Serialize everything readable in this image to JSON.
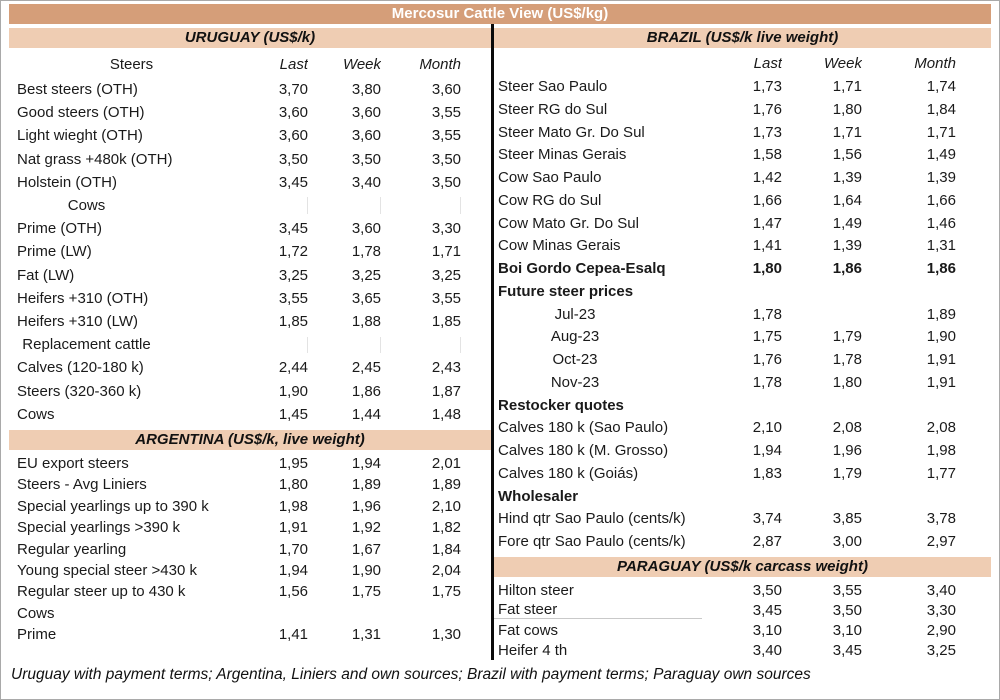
{
  "title": "Mercosur Cattle View (US$/kg)",
  "footer": "Uruguay with payment terms; Argentina, Liniers and own sources; Brazil with payment terms; Paraguay own sources",
  "columns": {
    "last": "Last",
    "week": "Week",
    "month": "Month"
  },
  "colors": {
    "title_bg": "#d59e79",
    "band_bg": "#efcdb3",
    "divider": "#0a0a0a"
  },
  "left": {
    "uruguay": {
      "header": "URUGUAY (US$/k)",
      "col_label": "Steers",
      "rows": [
        {
          "type": "data",
          "label": "Best steers (OTH)",
          "last": "3,70",
          "week": "3,80",
          "month": "3,60"
        },
        {
          "type": "data",
          "label": "Good steers (OTH)",
          "last": "3,60",
          "week": "3,60",
          "month": "3,55"
        },
        {
          "type": "data",
          "label": "Light wieght (OTH)",
          "last": "3,60",
          "week": "3,60",
          "month": "3,55"
        },
        {
          "type": "data",
          "label": "Nat grass +480k (OTH)",
          "last": "3,50",
          "week": "3,50",
          "month": "3,50"
        },
        {
          "type": "data",
          "label": "Holstein (OTH)",
          "last": "3,45",
          "week": "3,40",
          "month": "3,50"
        },
        {
          "type": "sub-center",
          "label": "Cows",
          "last": "",
          "week": "",
          "month": ""
        },
        {
          "type": "data",
          "label": "Prime (OTH)",
          "last": "3,45",
          "week": "3,60",
          "month": "3,30"
        },
        {
          "type": "data",
          "label": "Prime (LW)",
          "last": "1,72",
          "week": "1,78",
          "month": "1,71"
        },
        {
          "type": "data",
          "label": "Fat (LW)",
          "last": "3,25",
          "week": "3,25",
          "month": "3,25"
        },
        {
          "type": "data",
          "label": "Heifers +310 (OTH)",
          "last": "3,55",
          "week": "3,65",
          "month": "3,55"
        },
        {
          "type": "data",
          "label": "Heifers +310 (LW)",
          "last": "1,85",
          "week": "1,88",
          "month": "1,85"
        },
        {
          "type": "sub-center",
          "label": "Replacement cattle",
          "last": "",
          "week": "",
          "month": ""
        },
        {
          "type": "data",
          "label": "Calves (120-180 k)",
          "last": "2,44",
          "week": "2,45",
          "month": "2,43"
        },
        {
          "type": "data",
          "label": "Steers (320-360 k)",
          "last": "1,90",
          "week": "1,86",
          "month": "1,87"
        },
        {
          "type": "data",
          "label": "Cows",
          "last": "1,45",
          "week": "1,44",
          "month": "1,48"
        }
      ]
    },
    "argentina": {
      "header": "ARGENTINA (US$/k, live weight)",
      "rows": [
        {
          "type": "data",
          "label": "EU export steers",
          "last": "1,95",
          "week": "1,94",
          "month": "2,01"
        },
        {
          "type": "data",
          "label": "Steers - Avg Liniers",
          "last": "1,80",
          "week": "1,89",
          "month": "1,89"
        },
        {
          "type": "data",
          "label": "Special yearlings up to 390 k",
          "last": "1,98",
          "week": "1,96",
          "month": "2,10"
        },
        {
          "type": "data",
          "label": "Special yearlings >390 k",
          "last": "1,91",
          "week": "1,92",
          "month": "1,82"
        },
        {
          "type": "data",
          "label": "Regular yearling",
          "last": "1,70",
          "week": "1,67",
          "month": "1,84"
        },
        {
          "type": "data",
          "label": "Young special steer >430 k",
          "last": "1,94",
          "week": "1,90",
          "month": "2,04"
        },
        {
          "type": "data",
          "label": "Regular steer up to 430 k",
          "last": "1,56",
          "week": "1,75",
          "month": "1,75"
        },
        {
          "type": "sub-left",
          "label": "Cows",
          "last": "",
          "week": "",
          "month": ""
        },
        {
          "type": "data",
          "label": "Prime",
          "last": "1,41",
          "week": "1,31",
          "month": "1,30"
        }
      ]
    }
  },
  "right": {
    "brazil": {
      "header": "BRAZIL  (US$/k live weight)",
      "rows": [
        {
          "type": "data",
          "label": "Steer Sao Paulo",
          "last": "1,73",
          "week": "1,71",
          "month": "1,74"
        },
        {
          "type": "data",
          "label": "Steer RG do Sul",
          "last": "1,76",
          "week": "1,80",
          "month": "1,84"
        },
        {
          "type": "data",
          "label": "Steer Mato Gr. Do Sul",
          "last": "1,73",
          "week": "1,71",
          "month": "1,71"
        },
        {
          "type": "data",
          "label": "Steer Minas Gerais",
          "last": "1,58",
          "week": "1,56",
          "month": "1,49"
        },
        {
          "type": "data",
          "label": "Cow Sao Paulo",
          "last": "1,42",
          "week": "1,39",
          "month": "1,39"
        },
        {
          "type": "data",
          "label": "Cow RG do Sul",
          "last": "1,66",
          "week": "1,64",
          "month": "1,66"
        },
        {
          "type": "data",
          "label": "Cow Mato Gr. Do Sul",
          "last": "1,47",
          "week": "1,49",
          "month": "1,46"
        },
        {
          "type": "data",
          "label": "Cow Minas Gerais",
          "last": "1,41",
          "week": "1,39",
          "month": "1,31"
        },
        {
          "type": "boldrow",
          "label": "Boi Gordo Cepea-Esalq",
          "last": "1,80",
          "week": "1,86",
          "month": "1,86"
        },
        {
          "type": "boldhead",
          "label": "Future steer prices",
          "last": "",
          "week": "",
          "month": ""
        },
        {
          "type": "month",
          "label": "Jul-23",
          "last": "1,78",
          "week": "",
          "month": "1,89"
        },
        {
          "type": "month",
          "label": "Aug-23",
          "last": "1,75",
          "week": "1,79",
          "month": "1,90"
        },
        {
          "type": "month",
          "label": "Oct-23",
          "last": "1,76",
          "week": "1,78",
          "month": "1,91"
        },
        {
          "type": "month",
          "label": "Nov-23",
          "last": "1,78",
          "week": "1,80",
          "month": "1,91"
        },
        {
          "type": "boldhead",
          "label": "Restocker quotes",
          "last": "",
          "week": "",
          "month": ""
        },
        {
          "type": "data",
          "label": "Calves 180 k (Sao Paulo)",
          "last": "2,10",
          "week": "2,08",
          "month": "2,08"
        },
        {
          "type": "data",
          "label": "Calves 180 k (M. Grosso)",
          "last": "1,94",
          "week": "1,96",
          "month": "1,98"
        },
        {
          "type": "data",
          "label": "Calves 180 k (Goiás)",
          "last": "1,83",
          "week": "1,79",
          "month": "1,77"
        },
        {
          "type": "boldhead",
          "label": "Wholesaler",
          "last": "",
          "week": "",
          "month": ""
        },
        {
          "type": "data",
          "label": "Hind qtr Sao Paulo (cents/k)",
          "last": "3,74",
          "week": "3,85",
          "month": "3,78"
        },
        {
          "type": "data",
          "label": "Fore qtr Sao Paulo (cents/k)",
          "last": "2,87",
          "week": "3,00",
          "month": "2,97"
        }
      ]
    },
    "paraguay": {
      "header": "PARAGUAY  (US$/k carcass weight)",
      "rows": [
        {
          "type": "data",
          "label": "Hilton steer",
          "last": "3,50",
          "week": "3,55",
          "month": "3,40"
        },
        {
          "type": "data-u",
          "label": "Fat steer",
          "last": "3,45",
          "week": "3,50",
          "month": "3,30"
        },
        {
          "type": "data",
          "label": "Fat cows",
          "last": "3,10",
          "week": "3,10",
          "month": "2,90"
        },
        {
          "type": "data",
          "label": "Heifer 4 th",
          "last": "3,40",
          "week": "3,45",
          "month": "3,25"
        }
      ]
    }
  }
}
